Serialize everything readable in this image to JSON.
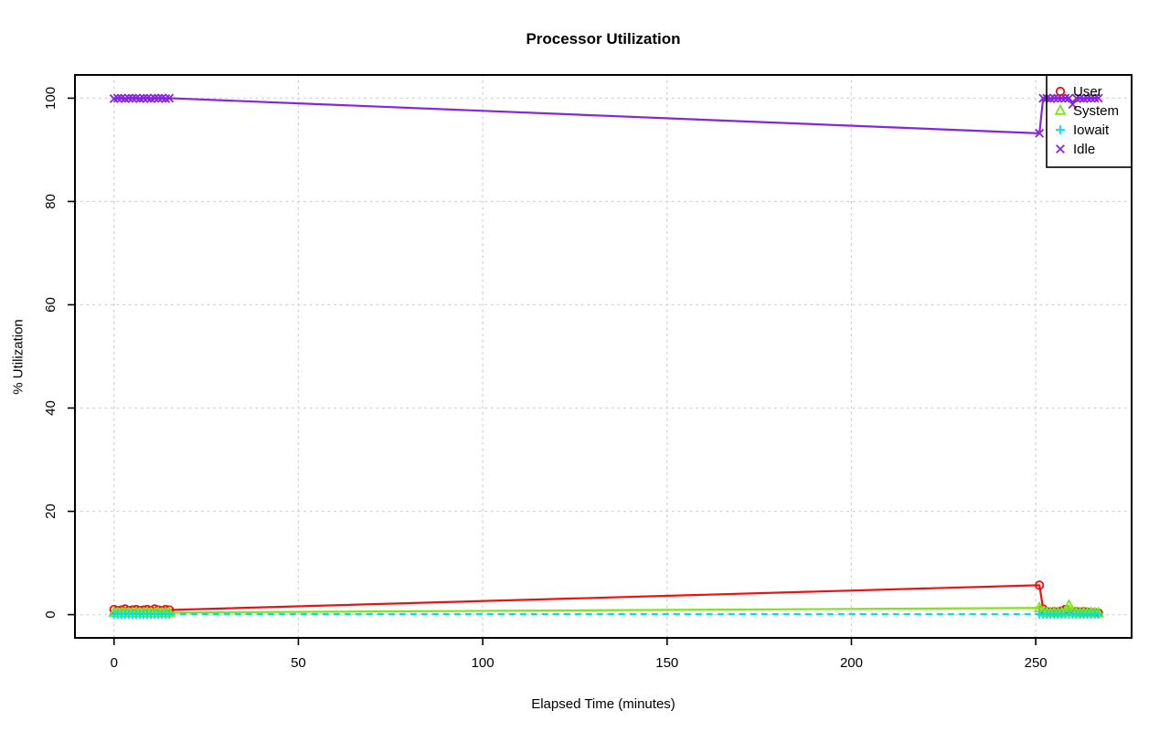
{
  "chart_data": {
    "type": "line",
    "title": "Processor Utilization",
    "xlabel": "Elapsed Time (minutes)",
    "ylabel": "% Utilization",
    "xlim": [
      -10.6,
      276
    ],
    "ylim": [
      -4.5,
      104.5
    ],
    "xticks": [
      0,
      50,
      100,
      150,
      200,
      250
    ],
    "yticks": [
      0,
      20,
      40,
      60,
      80,
      100
    ],
    "grid": "dotted",
    "grid_color": "#d4d4d4",
    "legend_position": "topright",
    "x": [
      0,
      1,
      2,
      3,
      4,
      5,
      6,
      7,
      8,
      9,
      10,
      11,
      12,
      13,
      14,
      15,
      251,
      252,
      253,
      254,
      255,
      256,
      257,
      258,
      259,
      260,
      261,
      262,
      263,
      264,
      265,
      266,
      267
    ],
    "series": [
      {
        "name": "User",
        "color": "#ee1111",
        "marker": "circle",
        "line": "solid",
        "values": [
          1.0,
          0.8,
          0.9,
          1.1,
          0.8,
          0.9,
          1.0,
          0.8,
          0.9,
          1.0,
          0.8,
          1.1,
          0.9,
          0.8,
          1.0,
          0.9,
          5.7,
          1.1,
          0.6,
          0.5,
          0.6,
          0.5,
          0.7,
          1.0,
          0.6,
          0.5,
          0.6,
          0.5,
          0.6,
          0.5,
          0.4,
          0.4,
          0.3
        ]
      },
      {
        "name": "System",
        "color": "#7ce617",
        "marker": "triangle",
        "line": "solid",
        "values": [
          0.4,
          0.3,
          0.3,
          0.4,
          0.3,
          0.3,
          0.4,
          0.3,
          0.3,
          0.4,
          0.3,
          0.3,
          0.4,
          0.3,
          0.3,
          0.4,
          1.3,
          0.5,
          0.4,
          0.3,
          0.4,
          0.3,
          0.4,
          0.5,
          1.8,
          0.5,
          0.4,
          0.3,
          0.4,
          0.3,
          0.4,
          0.3,
          0.3
        ]
      },
      {
        "name": "Iowait",
        "color": "#00dfee",
        "marker": "plus",
        "line": "dashed",
        "values": [
          0.1,
          0.1,
          0.1,
          0.1,
          0.1,
          0.1,
          0.1,
          0.1,
          0.1,
          0.1,
          0.1,
          0.1,
          0.1,
          0.1,
          0.1,
          0.1,
          0.1,
          0.1,
          0.1,
          0.1,
          0.1,
          0.1,
          0.1,
          0.1,
          0.1,
          0.1,
          0.1,
          0.1,
          0.1,
          0.1,
          0.1,
          0.1,
          0.1
        ]
      },
      {
        "name": "Idle",
        "color": "#8426df",
        "marker": "x",
        "line": "solid",
        "values": [
          99.9,
          100,
          100,
          99.9,
          100,
          100,
          100,
          99.9,
          100,
          100,
          99.9,
          100,
          100,
          100,
          99.9,
          100,
          93.2,
          100,
          100,
          99.9,
          100,
          100,
          100,
          100,
          100,
          98.8,
          100,
          100,
          99.9,
          100,
          100,
          100,
          100
        ]
      }
    ]
  }
}
